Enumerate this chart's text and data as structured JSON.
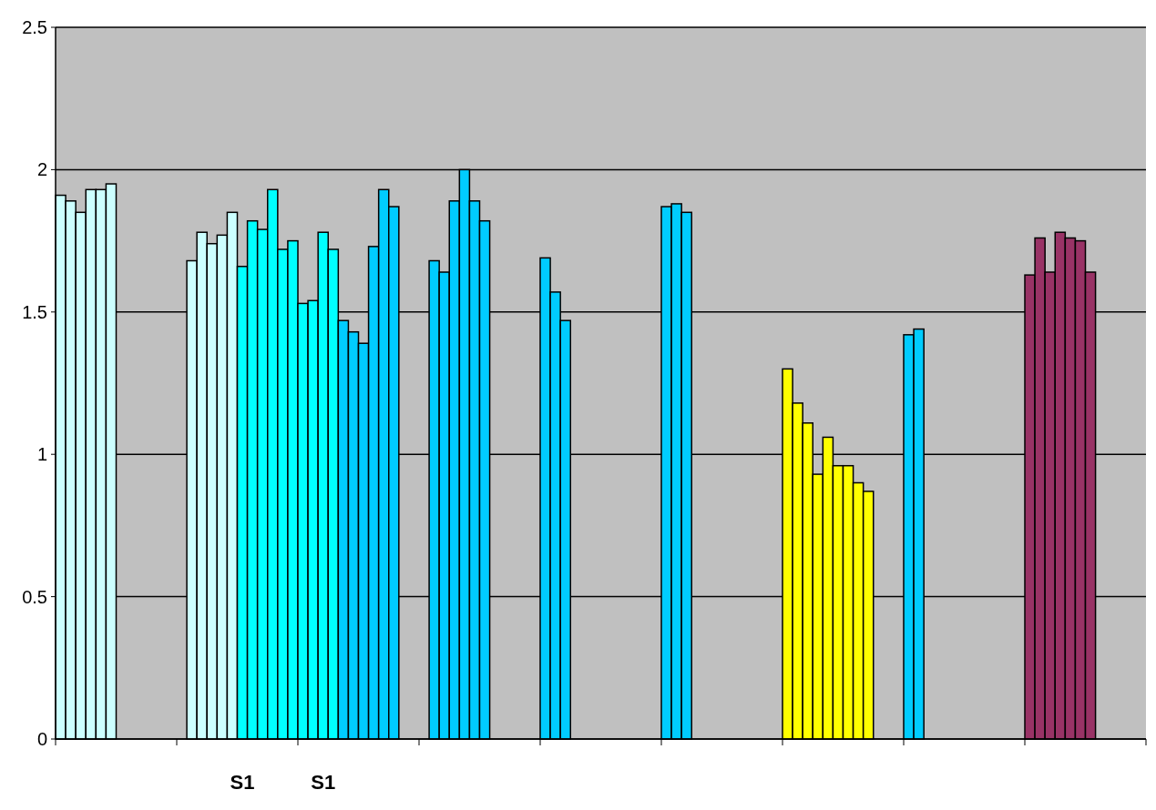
{
  "chart_data": {
    "type": "bar",
    "categories": [
      null,
      null,
      null,
      null,
      null,
      null,
      null,
      null,
      null,
      null,
      null,
      null,
      null,
      null,
      null,
      null,
      null,
      null,
      "S1",
      null,
      null,
      null,
      null,
      null,
      null,
      null,
      "S1",
      null,
      null,
      null,
      null,
      null,
      null,
      null,
      null,
      null,
      null,
      null,
      null,
      null,
      null,
      null,
      null,
      null,
      null,
      null,
      null,
      null,
      null,
      null,
      null,
      null,
      null,
      null,
      null,
      null,
      null,
      null,
      null,
      null,
      null,
      null,
      null,
      null,
      null,
      null,
      null,
      null,
      null,
      null,
      null,
      null,
      null,
      null,
      null,
      null,
      null,
      null,
      null,
      null,
      null,
      null,
      null,
      null,
      null,
      null,
      null,
      null,
      null,
      null,
      null,
      null,
      null,
      null,
      null,
      null,
      null,
      null,
      null,
      null,
      null,
      null,
      null,
      null,
      null,
      null,
      null,
      null
    ],
    "values": [
      1.91,
      1.89,
      1.85,
      1.93,
      1.93,
      1.95,
      null,
      null,
      null,
      null,
      null,
      null,
      null,
      1.68,
      1.78,
      1.74,
      1.77,
      1.85,
      1.66,
      1.82,
      1.79,
      1.93,
      1.72,
      1.75,
      1.53,
      1.54,
      1.78,
      1.72,
      1.47,
      1.43,
      1.39,
      1.73,
      1.93,
      1.87,
      null,
      null,
      null,
      1.68,
      1.64,
      1.89,
      2.0,
      1.89,
      1.82,
      null,
      null,
      null,
      null,
      null,
      1.69,
      1.57,
      1.47,
      null,
      null,
      null,
      null,
      null,
      null,
      null,
      null,
      null,
      1.87,
      1.88,
      1.85,
      null,
      null,
      null,
      null,
      null,
      null,
      null,
      null,
      null,
      1.3,
      1.18,
      1.11,
      0.93,
      1.06,
      0.96,
      0.96,
      0.9,
      0.87,
      null,
      null,
      null,
      1.42,
      1.44,
      null,
      null,
      null,
      null,
      null,
      null,
      null,
      null,
      null,
      null,
      1.63,
      1.76,
      1.64,
      1.78,
      1.76,
      1.75,
      1.64,
      null,
      null,
      null,
      null,
      null
    ],
    "colors": [
      "#ccffff",
      "#ccffff",
      "#ccffff",
      "#ccffff",
      "#ccffff",
      "#ccffff",
      null,
      null,
      null,
      null,
      null,
      null,
      null,
      "#ccffff",
      "#ccffff",
      "#ccffff",
      "#ccffff",
      "#ccffff",
      "#00ffff",
      "#00ffff",
      "#00ffff",
      "#00ffff",
      "#00ffff",
      "#00ffff",
      "#00ffff",
      "#00ffff",
      "#00ffff",
      "#00ffff",
      "#00ccff",
      "#00ccff",
      "#00ccff",
      "#00ccff",
      "#00ccff",
      "#00ccff",
      null,
      null,
      null,
      "#00ccff",
      "#00ccff",
      "#00ccff",
      "#00ccff",
      "#00ccff",
      "#00ccff",
      null,
      null,
      null,
      null,
      null,
      "#00ccff",
      "#00ccff",
      "#00ccff",
      null,
      null,
      null,
      null,
      null,
      null,
      null,
      null,
      null,
      "#00ccff",
      "#00ccff",
      "#00ccff",
      null,
      null,
      null,
      null,
      null,
      null,
      null,
      null,
      null,
      "#ffff00",
      "#ffff00",
      "#ffff00",
      "#ffff00",
      "#ffff00",
      "#ffff00",
      "#ffff00",
      "#ffff00",
      "#ffff00",
      null,
      null,
      null,
      "#00ccff",
      "#00ccff",
      null,
      null,
      null,
      null,
      null,
      null,
      null,
      null,
      null,
      null,
      "#993366",
      "#993366",
      "#993366",
      "#993366",
      "#993366",
      "#993366",
      "#993366",
      null,
      null,
      null,
      null,
      null
    ],
    "ylim": [
      0,
      2.5
    ],
    "yticks": [
      0,
      0.5,
      1,
      1.5,
      2,
      2.5
    ],
    "grid": true
  }
}
